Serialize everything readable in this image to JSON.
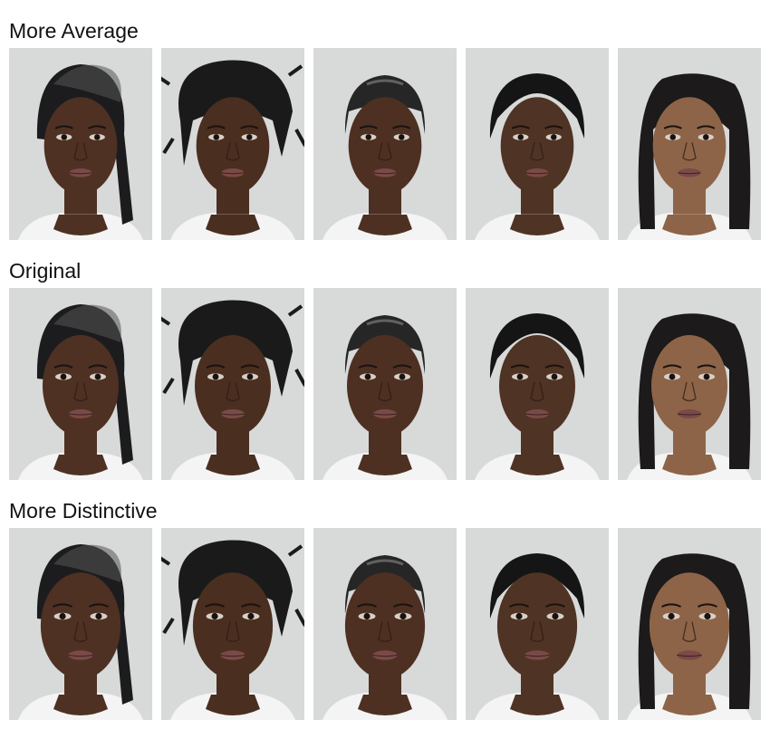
{
  "rows": [
    {
      "label": "More Average",
      "variant": "average"
    },
    {
      "label": "Original",
      "variant": "original"
    },
    {
      "label": "More Distinctive",
      "variant": "distinctive"
    }
  ],
  "faces": [
    {
      "skin": "#4e3123",
      "hair": "#1c1c1e",
      "style": "ponytail"
    },
    {
      "skin": "#4a2e20",
      "hair": "#1a1a1a",
      "style": "braided-updo"
    },
    {
      "skin": "#4d3022",
      "hair": "#262626",
      "style": "slicked-back"
    },
    {
      "skin": "#4f3324",
      "hair": "#151515",
      "style": "middle-part-updo"
    },
    {
      "skin": "#8d6448",
      "hair": "#1c1a1a",
      "style": "shoulder-length"
    }
  ],
  "colors": {
    "background": "#d8d9d9",
    "shirt": "#f4f4f4",
    "lips": "#7a4a48",
    "eyes": "#1a1210"
  }
}
